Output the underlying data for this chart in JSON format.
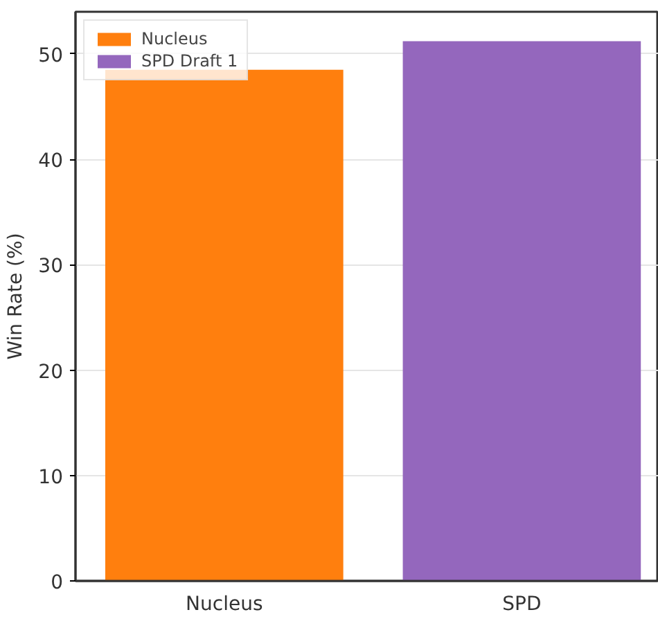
{
  "chart_data": {
    "type": "bar",
    "ylabel": "Win Rate (%)",
    "categories": [
      "Nucleus",
      "SPD"
    ],
    "series": [
      {
        "name": "Nucleus",
        "color": "#ff7f0e",
        "values": [
          48.5,
          null
        ]
      },
      {
        "name": "SPD Draft 1",
        "color": "#9467bd",
        "values": [
          null,
          51.2
        ]
      }
    ],
    "ylim": [
      0,
      54
    ],
    "yticks": [
      0,
      10,
      20,
      30,
      40,
      50
    ],
    "grid": "y",
    "legend": "top left"
  }
}
